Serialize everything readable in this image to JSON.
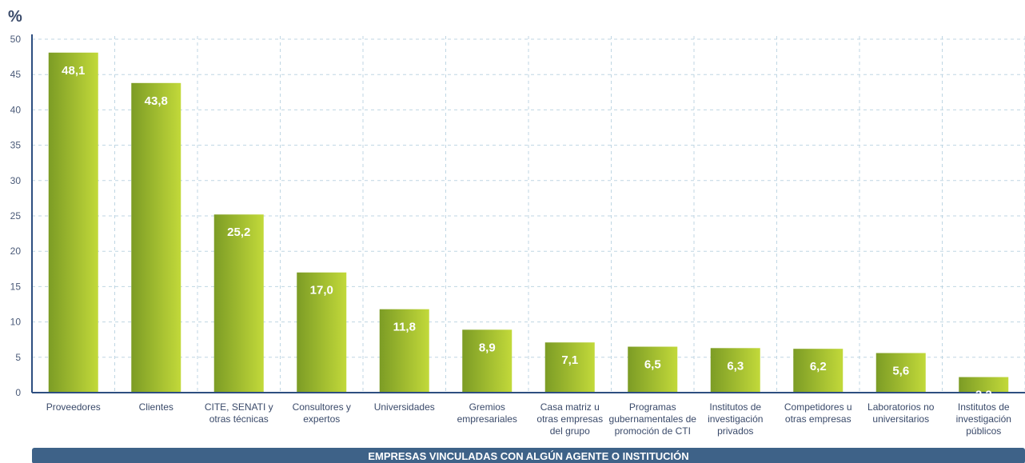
{
  "chart_data": {
    "type": "bar",
    "ylabel": "%",
    "ylim": [
      0,
      50
    ],
    "yticks": [
      0,
      5,
      10,
      15,
      20,
      25,
      30,
      35,
      40,
      45,
      50
    ],
    "grid": true,
    "categories": [
      [
        "Proveedores"
      ],
      [
        "Clientes"
      ],
      [
        "CITE, SENATI y",
        "otras técnicas"
      ],
      [
        "Consultores y",
        "expertos"
      ],
      [
        "Universidades"
      ],
      [
        "Gremios",
        "empresariales"
      ],
      [
        "Casa matriz u",
        "otras empresas",
        "del grupo"
      ],
      [
        "Programas",
        "gubernamentales de",
        "promoción de CTI"
      ],
      [
        "Institutos de",
        "investigación",
        "privados"
      ],
      [
        "Competidores u",
        "otras empresas"
      ],
      [
        "Laboratorios no",
        "universitarios"
      ],
      [
        "Institutos de",
        "investigación",
        "públicos"
      ]
    ],
    "values": [
      48.1,
      43.8,
      25.2,
      17.0,
      11.8,
      8.9,
      7.1,
      6.5,
      6.3,
      6.2,
      5.6,
      2.2
    ],
    "value_labels": [
      "48,1",
      "43,8",
      "25,2",
      "17,0",
      "11,8",
      "8,9",
      "7,1",
      "6,5",
      "6,3",
      "6,2",
      "5,6",
      "2,2"
    ],
    "xlabel": "EMPRESAS VINCULADAS CON ALGÚN AGENTE O INSTITUCIÓN",
    "colors": {
      "bar_dark": "#7c9c25",
      "bar_light": "#c2d93a",
      "axis": "#2e4f80",
      "banner": "#3e6288",
      "grid": "#bfd6e3"
    }
  }
}
